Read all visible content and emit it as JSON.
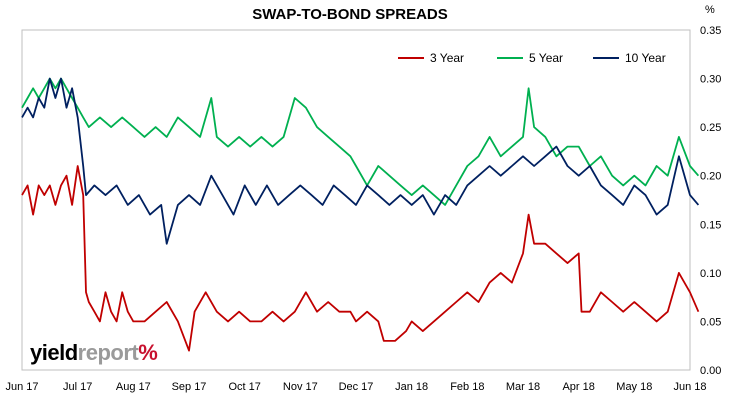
{
  "chart_data": {
    "type": "line",
    "title": "SWAP-TO-BOND SPREADS",
    "unit": "%",
    "ylim": [
      0,
      0.35
    ],
    "yticks": [
      "0.00",
      "0.05",
      "0.10",
      "0.15",
      "0.20",
      "0.25",
      "0.30",
      "0.35"
    ],
    "x_range": [
      0,
      12
    ],
    "x_tick_labels": [
      "Jun 17",
      "Jul 17",
      "Aug 17",
      "Sep 17",
      "Oct 17",
      "Nov 17",
      "Dec 17",
      "Jan 18",
      "Feb 18",
      "Mar 18",
      "Apr 18",
      "May 18",
      "Jun 18"
    ],
    "legend_position": "top-right",
    "grid": false,
    "series": [
      {
        "name": "3 Year",
        "color": "#c00000",
        "points": [
          [
            0,
            0.18
          ],
          [
            0.1,
            0.19
          ],
          [
            0.2,
            0.16
          ],
          [
            0.3,
            0.19
          ],
          [
            0.4,
            0.18
          ],
          [
            0.5,
            0.19
          ],
          [
            0.6,
            0.17
          ],
          [
            0.7,
            0.19
          ],
          [
            0.8,
            0.2
          ],
          [
            0.9,
            0.17
          ],
          [
            1.0,
            0.21
          ],
          [
            1.1,
            0.18
          ],
          [
            1.15,
            0.08
          ],
          [
            1.2,
            0.07
          ],
          [
            1.3,
            0.06
          ],
          [
            1.4,
            0.05
          ],
          [
            1.5,
            0.08
          ],
          [
            1.6,
            0.06
          ],
          [
            1.7,
            0.05
          ],
          [
            1.8,
            0.08
          ],
          [
            1.9,
            0.06
          ],
          [
            2.0,
            0.05
          ],
          [
            2.2,
            0.05
          ],
          [
            2.4,
            0.06
          ],
          [
            2.6,
            0.07
          ],
          [
            2.8,
            0.05
          ],
          [
            3.0,
            0.02
          ],
          [
            3.1,
            0.06
          ],
          [
            3.3,
            0.08
          ],
          [
            3.5,
            0.06
          ],
          [
            3.7,
            0.05
          ],
          [
            3.9,
            0.06
          ],
          [
            4.1,
            0.05
          ],
          [
            4.3,
            0.05
          ],
          [
            4.5,
            0.06
          ],
          [
            4.7,
            0.05
          ],
          [
            4.9,
            0.06
          ],
          [
            5.1,
            0.08
          ],
          [
            5.3,
            0.06
          ],
          [
            5.5,
            0.07
          ],
          [
            5.7,
            0.06
          ],
          [
            5.9,
            0.06
          ],
          [
            6.0,
            0.05
          ],
          [
            6.2,
            0.06
          ],
          [
            6.4,
            0.05
          ],
          [
            6.5,
            0.03
          ],
          [
            6.7,
            0.03
          ],
          [
            6.9,
            0.04
          ],
          [
            7.0,
            0.05
          ],
          [
            7.2,
            0.04
          ],
          [
            7.4,
            0.05
          ],
          [
            7.6,
            0.06
          ],
          [
            7.8,
            0.07
          ],
          [
            8.0,
            0.08
          ],
          [
            8.2,
            0.07
          ],
          [
            8.4,
            0.09
          ],
          [
            8.6,
            0.1
          ],
          [
            8.8,
            0.09
          ],
          [
            9.0,
            0.12
          ],
          [
            9.1,
            0.16
          ],
          [
            9.2,
            0.13
          ],
          [
            9.4,
            0.13
          ],
          [
            9.6,
            0.12
          ],
          [
            9.8,
            0.11
          ],
          [
            10.0,
            0.12
          ],
          [
            10.05,
            0.06
          ],
          [
            10.2,
            0.06
          ],
          [
            10.4,
            0.08
          ],
          [
            10.6,
            0.07
          ],
          [
            10.8,
            0.06
          ],
          [
            11.0,
            0.07
          ],
          [
            11.2,
            0.06
          ],
          [
            11.4,
            0.05
          ],
          [
            11.6,
            0.06
          ],
          [
            11.8,
            0.1
          ],
          [
            12.0,
            0.08
          ],
          [
            12.15,
            0.06
          ]
        ]
      },
      {
        "name": "5 Year",
        "color": "#00b050",
        "points": [
          [
            0,
            0.27
          ],
          [
            0.1,
            0.28
          ],
          [
            0.2,
            0.29
          ],
          [
            0.3,
            0.28
          ],
          [
            0.4,
            0.29
          ],
          [
            0.5,
            0.3
          ],
          [
            0.6,
            0.29
          ],
          [
            0.7,
            0.3
          ],
          [
            0.8,
            0.29
          ],
          [
            0.9,
            0.28
          ],
          [
            1.0,
            0.27
          ],
          [
            1.1,
            0.26
          ],
          [
            1.2,
            0.25
          ],
          [
            1.4,
            0.26
          ],
          [
            1.6,
            0.25
          ],
          [
            1.8,
            0.26
          ],
          [
            2.0,
            0.25
          ],
          [
            2.2,
            0.24
          ],
          [
            2.4,
            0.25
          ],
          [
            2.6,
            0.24
          ],
          [
            2.8,
            0.26
          ],
          [
            3.0,
            0.25
          ],
          [
            3.2,
            0.24
          ],
          [
            3.4,
            0.28
          ],
          [
            3.5,
            0.24
          ],
          [
            3.7,
            0.23
          ],
          [
            3.9,
            0.24
          ],
          [
            4.1,
            0.23
          ],
          [
            4.3,
            0.24
          ],
          [
            4.5,
            0.23
          ],
          [
            4.7,
            0.24
          ],
          [
            4.9,
            0.28
          ],
          [
            5.1,
            0.27
          ],
          [
            5.3,
            0.25
          ],
          [
            5.5,
            0.24
          ],
          [
            5.7,
            0.23
          ],
          [
            5.9,
            0.22
          ],
          [
            6.0,
            0.21
          ],
          [
            6.2,
            0.19
          ],
          [
            6.4,
            0.21
          ],
          [
            6.6,
            0.2
          ],
          [
            6.8,
            0.19
          ],
          [
            7.0,
            0.18
          ],
          [
            7.2,
            0.19
          ],
          [
            7.4,
            0.18
          ],
          [
            7.6,
            0.17
          ],
          [
            7.8,
            0.19
          ],
          [
            8.0,
            0.21
          ],
          [
            8.2,
            0.22
          ],
          [
            8.4,
            0.24
          ],
          [
            8.6,
            0.22
          ],
          [
            8.8,
            0.23
          ],
          [
            9.0,
            0.24
          ],
          [
            9.1,
            0.29
          ],
          [
            9.2,
            0.25
          ],
          [
            9.4,
            0.24
          ],
          [
            9.6,
            0.22
          ],
          [
            9.8,
            0.23
          ],
          [
            10.0,
            0.23
          ],
          [
            10.2,
            0.21
          ],
          [
            10.4,
            0.22
          ],
          [
            10.6,
            0.2
          ],
          [
            10.8,
            0.19
          ],
          [
            11.0,
            0.2
          ],
          [
            11.2,
            0.19
          ],
          [
            11.4,
            0.21
          ],
          [
            11.6,
            0.2
          ],
          [
            11.8,
            0.24
          ],
          [
            12.0,
            0.21
          ],
          [
            12.15,
            0.2
          ]
        ]
      },
      {
        "name": "10 Year",
        "color": "#002060",
        "points": [
          [
            0,
            0.26
          ],
          [
            0.1,
            0.27
          ],
          [
            0.2,
            0.26
          ],
          [
            0.3,
            0.28
          ],
          [
            0.4,
            0.27
          ],
          [
            0.5,
            0.3
          ],
          [
            0.6,
            0.28
          ],
          [
            0.7,
            0.3
          ],
          [
            0.8,
            0.27
          ],
          [
            0.9,
            0.29
          ],
          [
            1.0,
            0.26
          ],
          [
            1.1,
            0.21
          ],
          [
            1.15,
            0.18
          ],
          [
            1.3,
            0.19
          ],
          [
            1.5,
            0.18
          ],
          [
            1.7,
            0.19
          ],
          [
            1.9,
            0.17
          ],
          [
            2.1,
            0.18
          ],
          [
            2.3,
            0.16
          ],
          [
            2.5,
            0.17
          ],
          [
            2.6,
            0.13
          ],
          [
            2.8,
            0.17
          ],
          [
            3.0,
            0.18
          ],
          [
            3.2,
            0.17
          ],
          [
            3.4,
            0.2
          ],
          [
            3.6,
            0.18
          ],
          [
            3.8,
            0.16
          ],
          [
            4.0,
            0.19
          ],
          [
            4.2,
            0.17
          ],
          [
            4.4,
            0.19
          ],
          [
            4.6,
            0.17
          ],
          [
            4.8,
            0.18
          ],
          [
            5.0,
            0.19
          ],
          [
            5.2,
            0.18
          ],
          [
            5.4,
            0.17
          ],
          [
            5.6,
            0.19
          ],
          [
            5.8,
            0.18
          ],
          [
            6.0,
            0.17
          ],
          [
            6.2,
            0.19
          ],
          [
            6.4,
            0.18
          ],
          [
            6.6,
            0.17
          ],
          [
            6.8,
            0.18
          ],
          [
            7.0,
            0.17
          ],
          [
            7.2,
            0.18
          ],
          [
            7.4,
            0.16
          ],
          [
            7.6,
            0.18
          ],
          [
            7.8,
            0.17
          ],
          [
            8.0,
            0.19
          ],
          [
            8.2,
            0.2
          ],
          [
            8.4,
            0.21
          ],
          [
            8.6,
            0.2
          ],
          [
            8.8,
            0.21
          ],
          [
            9.0,
            0.22
          ],
          [
            9.2,
            0.21
          ],
          [
            9.4,
            0.22
          ],
          [
            9.6,
            0.23
          ],
          [
            9.8,
            0.21
          ],
          [
            10.0,
            0.2
          ],
          [
            10.2,
            0.21
          ],
          [
            10.4,
            0.19
          ],
          [
            10.6,
            0.18
          ],
          [
            10.8,
            0.17
          ],
          [
            11.0,
            0.19
          ],
          [
            11.2,
            0.18
          ],
          [
            11.4,
            0.16
          ],
          [
            11.6,
            0.17
          ],
          [
            11.8,
            0.22
          ],
          [
            12.0,
            0.18
          ],
          [
            12.15,
            0.17
          ]
        ]
      }
    ]
  },
  "logo": {
    "part1": "yield",
    "part2": "report",
    "mark": "%"
  }
}
